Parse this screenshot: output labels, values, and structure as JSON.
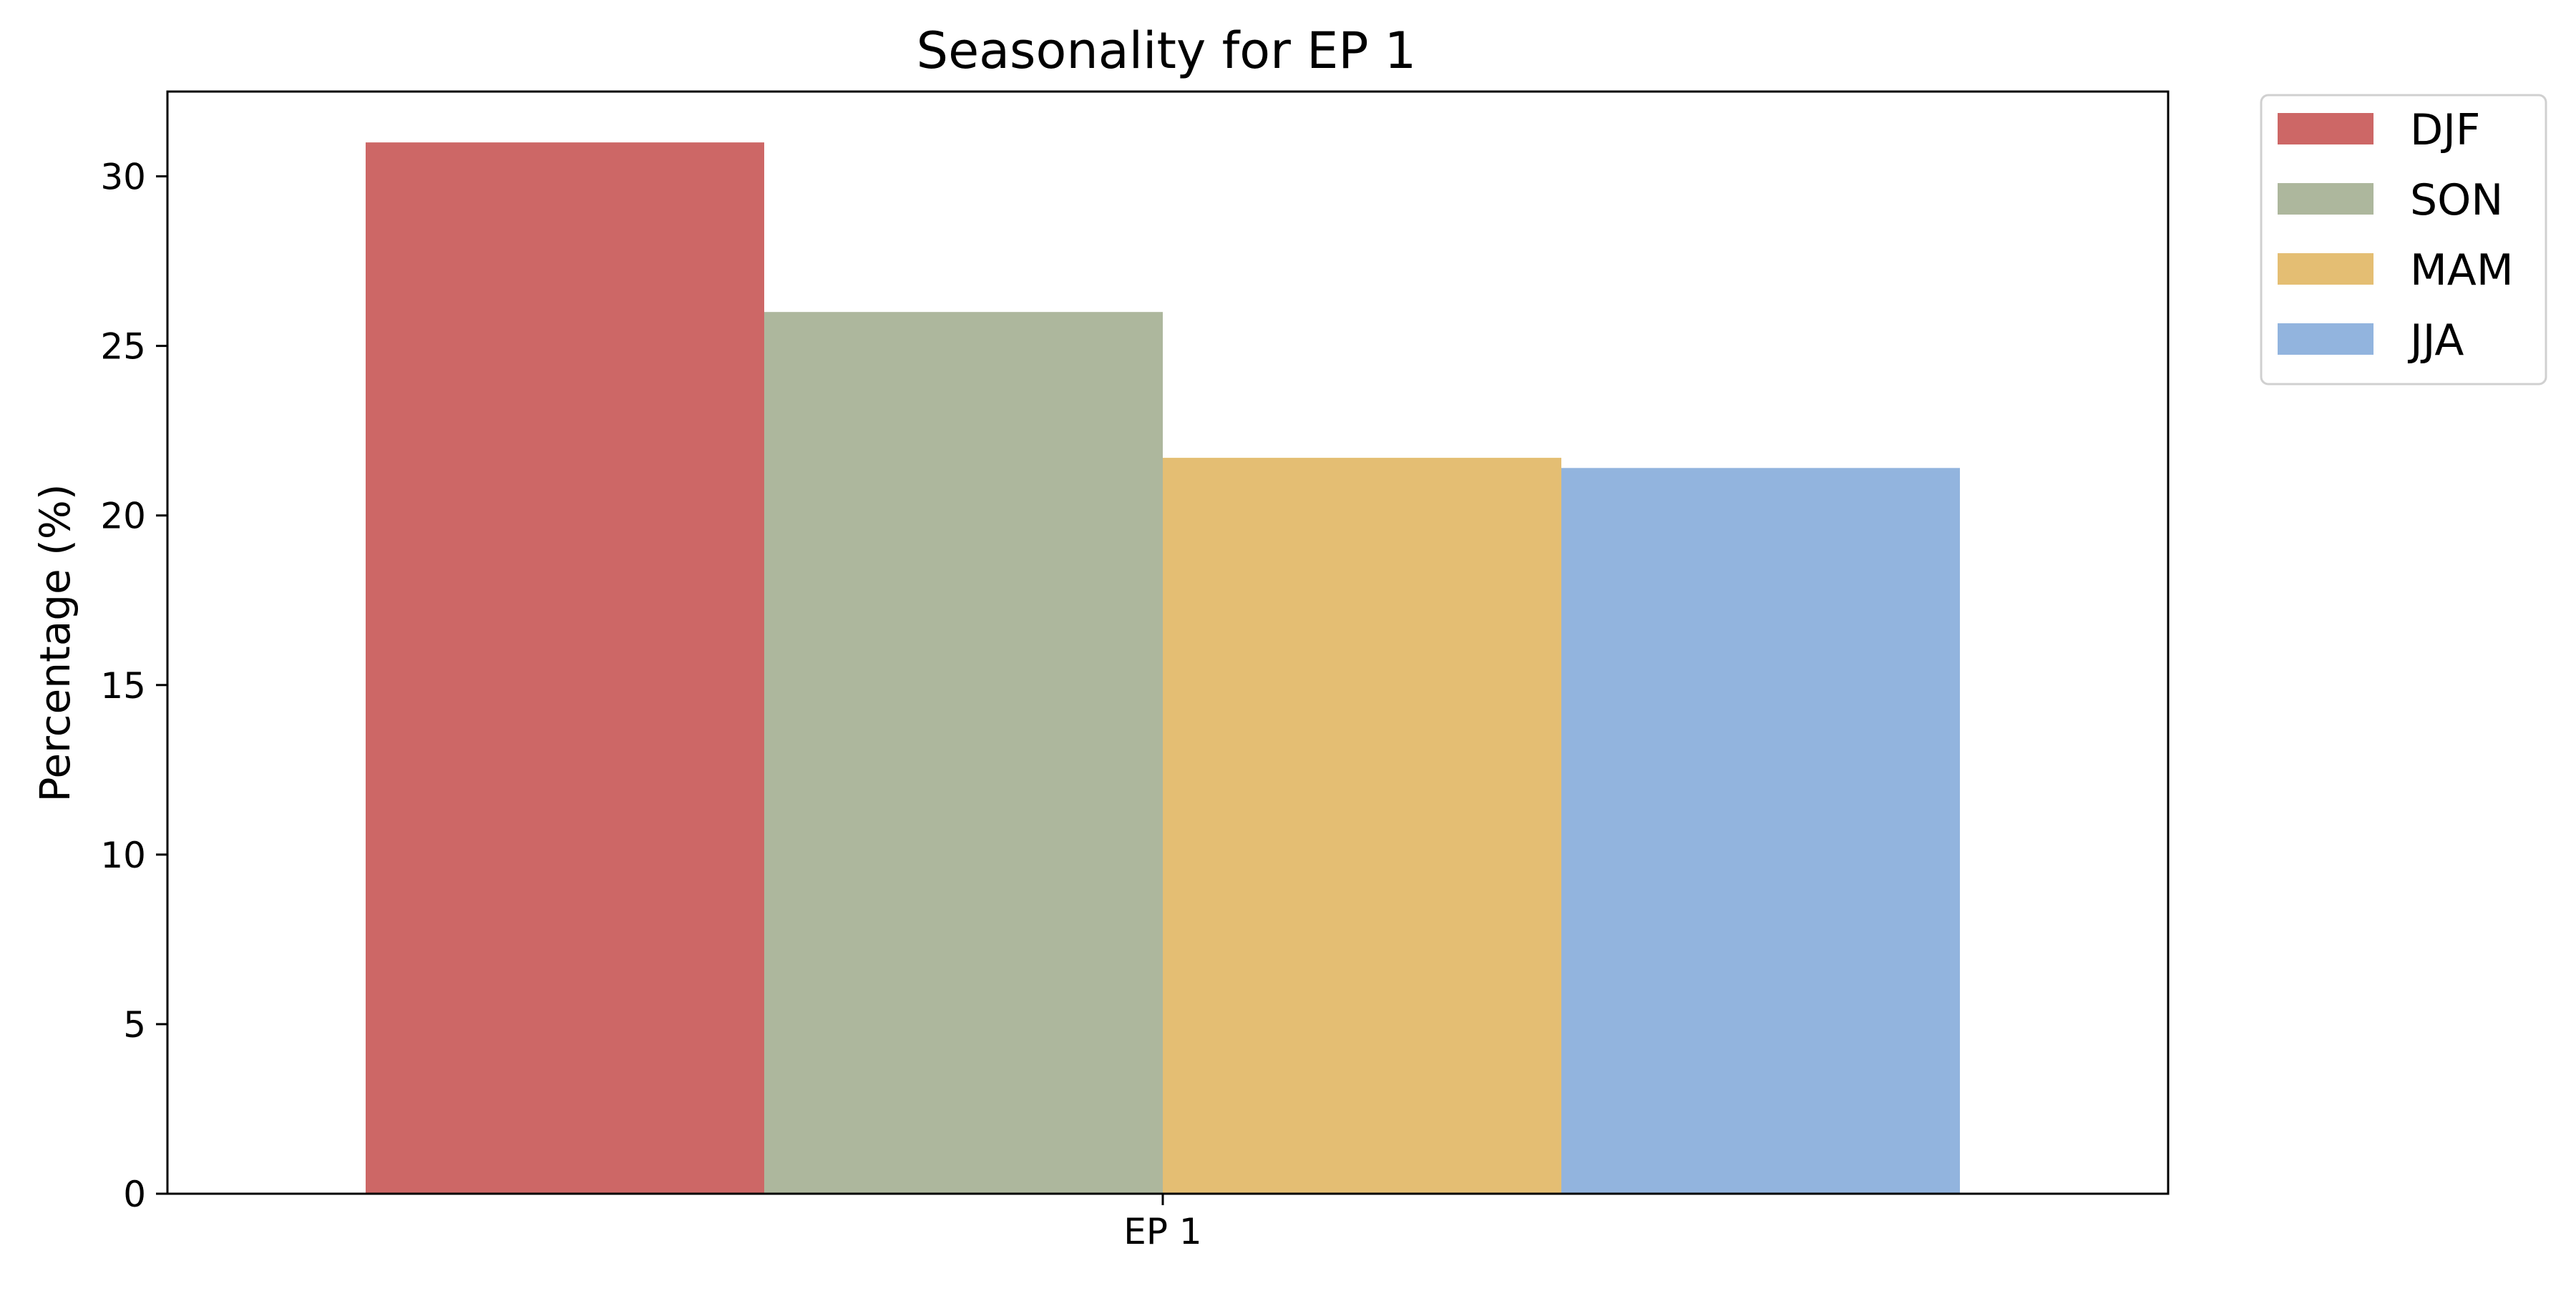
{
  "chart_data": {
    "type": "bar",
    "title": "Seasonality for EP 1",
    "xlabel": "",
    "ylabel": "Percentage (%)",
    "categories": [
      "EP 1"
    ],
    "series": [
      {
        "name": "DJF",
        "values": [
          31.0
        ],
        "color": "#cd6766"
      },
      {
        "name": "SON",
        "values": [
          26.0
        ],
        "color": "#adb79d"
      },
      {
        "name": "MAM",
        "values": [
          21.7
        ],
        "color": "#e4be73"
      },
      {
        "name": "JJA",
        "values": [
          21.4
        ],
        "color": "#92b4de"
      }
    ],
    "ylim": [
      0,
      32.5
    ],
    "yticks": [
      0,
      5,
      10,
      15,
      20,
      25,
      30
    ],
    "grid": false,
    "legend_position": "outside-top-right"
  }
}
